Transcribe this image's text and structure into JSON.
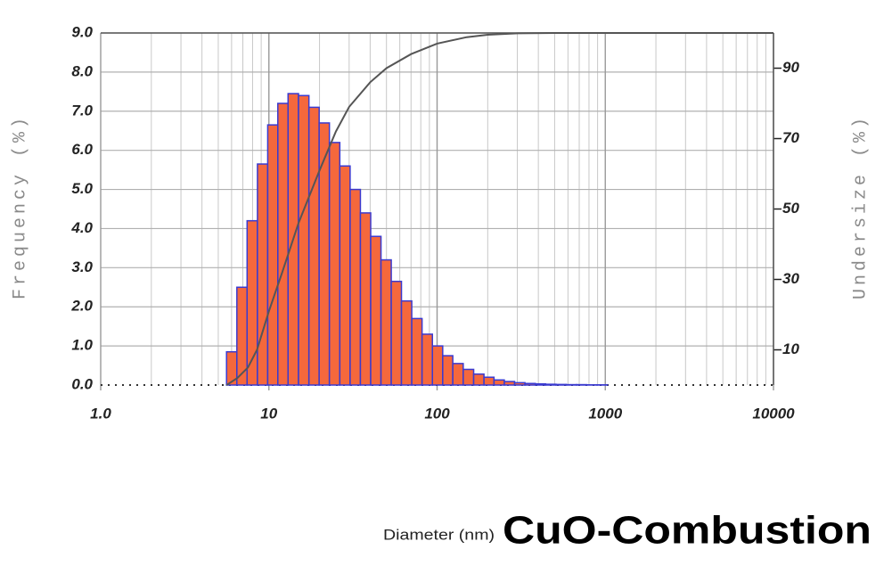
{
  "chart_data": {
    "type": "histogram",
    "xlabel": "Diameter (nm)",
    "ylabel": "Frequency (%)",
    "y2label": "Undersize (%)",
    "annotation": "CuO-Combustion",
    "xscale": "log",
    "grid": true,
    "color": "#f5683c",
    "edge_color": "#3a3ad0",
    "bins": [
      5.6,
      6.45,
      7.42,
      8.55,
      9.84,
      11.3,
      13.0,
      15.0,
      17.3,
      19.9,
      22.9,
      26.4,
      30.4,
      35.0,
      40.3,
      46.4,
      53.4,
      61.4,
      70.7,
      81.4,
      93.8,
      108,
      124,
      143,
      165,
      190,
      218,
      251,
      289,
      333,
      384,
      442,
      509,
      586,
      674,
      776,
      894,
      1029
    ],
    "counts": [
      0.85,
      2.5,
      4.2,
      5.65,
      6.65,
      7.2,
      7.45,
      7.4,
      7.1,
      6.7,
      6.2,
      5.6,
      5.0,
      4.4,
      3.8,
      3.2,
      2.65,
      2.15,
      1.7,
      1.3,
      1.0,
      0.75,
      0.55,
      0.4,
      0.28,
      0.2,
      0.13,
      0.09,
      0.06,
      0.04,
      0.03,
      0.02,
      0.015,
      0.01,
      0.01,
      0.005,
      0.005
    ],
    "cumulative": {
      "axis": "y2",
      "color": "#555555",
      "x": [
        5.6,
        6.5,
        7.5,
        8.5,
        10,
        12,
        15,
        20,
        25,
        30,
        40,
        50,
        70,
        100,
        150,
        200,
        300,
        500,
        1000,
        10000
      ],
      "values": [
        0,
        2,
        5,
        10,
        21,
        32,
        46,
        61,
        72,
        79,
        86,
        90,
        94,
        97,
        98.8,
        99.5,
        99.9,
        100,
        100,
        100
      ]
    },
    "xlim": [
      1,
      10000
    ],
    "xticks": [
      {
        "value": 1,
        "label": "1.0"
      },
      10,
      100,
      1000,
      10000
    ],
    "ylim": [
      0,
      9
    ],
    "yticks": [
      {
        "value": 0,
        "label": "0.0"
      },
      {
        "value": 1,
        "label": "1.0"
      },
      {
        "value": 2,
        "label": "2.0"
      },
      {
        "value": 3,
        "label": "3.0"
      },
      {
        "value": 4,
        "label": "4.0"
      },
      {
        "value": 5,
        "label": "5.0"
      },
      {
        "value": 6,
        "label": "6.0"
      },
      {
        "value": 7,
        "label": "7.0"
      },
      {
        "value": 8,
        "label": "8.0"
      },
      {
        "value": 9,
        "label": "9.0"
      }
    ],
    "y2lim": [
      0,
      100
    ],
    "y2ticks": [
      10,
      30,
      50,
      70,
      90
    ]
  }
}
